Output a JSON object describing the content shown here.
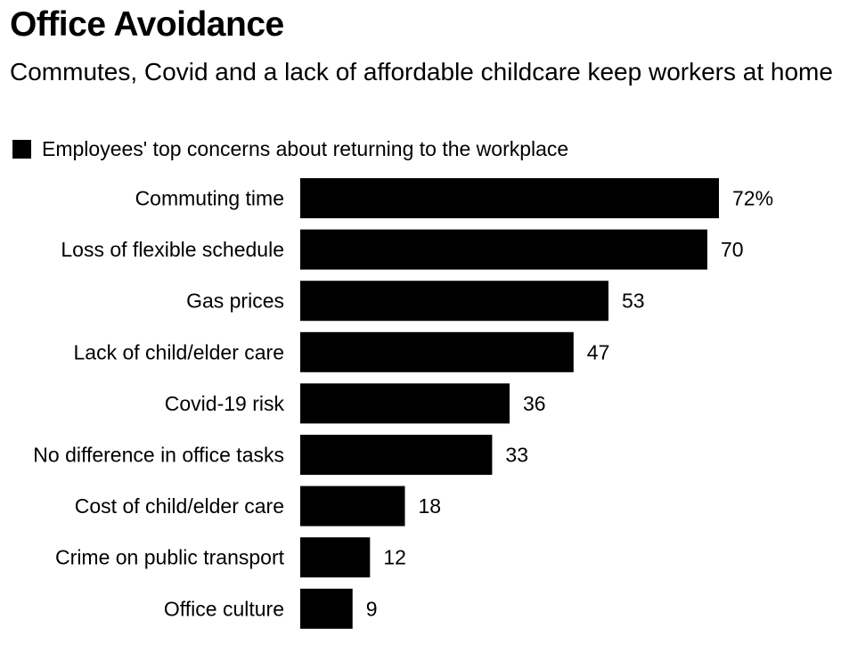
{
  "title": "Office Avoidance",
  "subtitle": "Commutes, Covid and a lack of affordable childcare keep workers at home",
  "chart_data": {
    "type": "bar",
    "orientation": "horizontal",
    "title": "Office Avoidance",
    "subtitle": "Commutes, Covid and a lack of affordable childcare keep workers at home",
    "legend": "Employees' top concerns about returning to the workplace",
    "bar_color": "#000000",
    "categories": [
      "Commuting time",
      "Loss of flexible schedule",
      "Gas prices",
      "Lack of child/elder care",
      "Covid-19 risk",
      "No difference in office tasks",
      "Cost of child/elder care",
      "Crime on public transport",
      "Office culture"
    ],
    "values": [
      72,
      70,
      53,
      47,
      36,
      33,
      18,
      12,
      9
    ],
    "value_labels": [
      "72%",
      "70",
      "53",
      "47",
      "36",
      "33",
      "18",
      "12",
      "9"
    ],
    "unit": "%",
    "xlim": [
      0,
      72
    ]
  }
}
